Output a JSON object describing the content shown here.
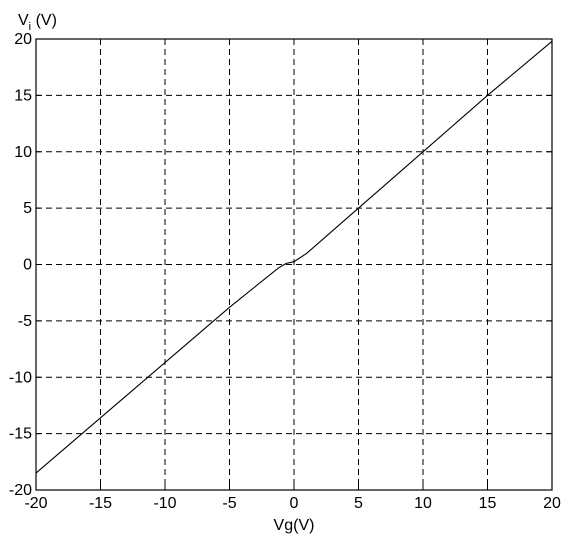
{
  "chart_data": {
    "type": "line",
    "title": "",
    "xlabel": "Vg(V)",
    "ylabel": {
      "main": "V",
      "sub": "i",
      "unit": " (V)"
    },
    "xlim": [
      -20,
      20
    ],
    "ylim": [
      -20,
      20
    ],
    "xticks": [
      -20,
      -15,
      -10,
      -5,
      0,
      5,
      10,
      15,
      20
    ],
    "yticks": [
      -20,
      -15,
      -10,
      -5,
      0,
      5,
      10,
      15,
      20
    ],
    "grid": true,
    "series": [
      {
        "color": "#000000",
        "x": [
          -20,
          -15,
          -10,
          -5,
          -1.2,
          -0.6,
          0,
          1,
          5,
          10,
          15,
          20
        ],
        "y": [
          -18.5,
          -13.6,
          -8.7,
          -3.8,
          -0.3,
          0.1,
          0.25,
          1.0,
          5.0,
          10.0,
          15.0,
          19.8
        ]
      }
    ]
  }
}
